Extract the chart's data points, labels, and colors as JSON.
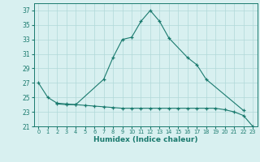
{
  "xlabel": "Humidex (Indice chaleur)",
  "line1_x": [
    0,
    1,
    2,
    3,
    4,
    7,
    8,
    9,
    10,
    11,
    12,
    13,
    14,
    16,
    17,
    18,
    22
  ],
  "line1_y": [
    27,
    25,
    24.2,
    24.1,
    24.0,
    27.5,
    30.5,
    33,
    33.3,
    35.5,
    37,
    35.5,
    33.2,
    30.5,
    29.5,
    27.5,
    23.2
  ],
  "line2_x": [
    2,
    3,
    4,
    5,
    6,
    7,
    8,
    9,
    10,
    11,
    12,
    13,
    14,
    15,
    16,
    17,
    18,
    19,
    20,
    21,
    22,
    23
  ],
  "line2_y": [
    24.1,
    24.0,
    24.0,
    23.9,
    23.8,
    23.7,
    23.6,
    23.5,
    23.5,
    23.5,
    23.5,
    23.5,
    23.5,
    23.5,
    23.5,
    23.5,
    23.5,
    23.5,
    23.3,
    23.0,
    22.5,
    21.0
  ],
  "line_color": "#1a7a6e",
  "bg_color": "#d8f0f0",
  "grid_color": "#b0d8d8",
  "ylim": [
    21,
    38
  ],
  "xlim": [
    -0.5,
    23.5
  ],
  "yticks": [
    21,
    23,
    25,
    27,
    29,
    31,
    33,
    35,
    37
  ],
  "xticks": [
    0,
    1,
    2,
    3,
    4,
    5,
    6,
    7,
    8,
    9,
    10,
    11,
    12,
    13,
    14,
    15,
    16,
    17,
    18,
    19,
    20,
    21,
    22,
    23
  ],
  "xtick_labels": [
    "0",
    "1",
    "2",
    "3",
    "4",
    "5",
    "6",
    "7",
    "8",
    "9",
    "10",
    "11",
    "12",
    "13",
    "14",
    "15",
    "16",
    "17",
    "18",
    "19",
    "20",
    "21",
    "22",
    "23"
  ]
}
